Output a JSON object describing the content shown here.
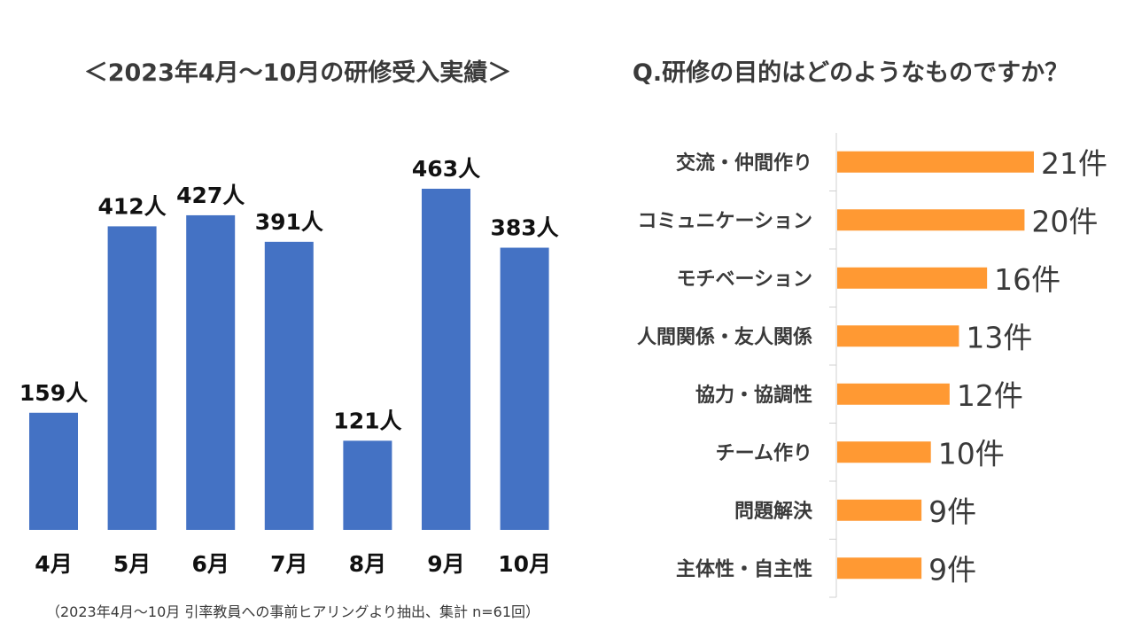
{
  "chart_data": [
    {
      "type": "bar",
      "title": "＜2023年4月～10月の研修受入実績＞",
      "categories": [
        "4月",
        "5月",
        "6月",
        "7月",
        "8月",
        "9月",
        "10月"
      ],
      "values": [
        159,
        412,
        427,
        391,
        121,
        463,
        383
      ],
      "data_labels": [
        "159人",
        "412人",
        "427人",
        "391人",
        "121人",
        "463人",
        "383人"
      ],
      "unit": "人",
      "xlabel": "",
      "ylabel": "",
      "ylim": [
        0,
        463
      ],
      "grid": false,
      "color": "#4472C4"
    },
    {
      "type": "bar",
      "orientation": "horizontal",
      "title": "Q.研修の目的はどのようなものですか？",
      "categories": [
        "交流・仲間作り",
        "コミュニケーション",
        "モチベーション",
        "人間関係・友人関係",
        "協力・協調性",
        "チーム作り",
        "問題解決",
        "主体性・自主性"
      ],
      "values": [
        21,
        20,
        16,
        13,
        12,
        10,
        9,
        9
      ],
      "data_labels": [
        "21件",
        "20件",
        "16件",
        "13件",
        "12件",
        "10件",
        "9件",
        "9件"
      ],
      "unit": "件",
      "xlabel": "",
      "ylabel": "",
      "xlim": [
        0,
        21
      ],
      "grid": false,
      "color": "#FF9933"
    }
  ],
  "footnote": "（2023年4月～10月  引率教員への事前ヒアリングより抽出、集計  n=61回）"
}
